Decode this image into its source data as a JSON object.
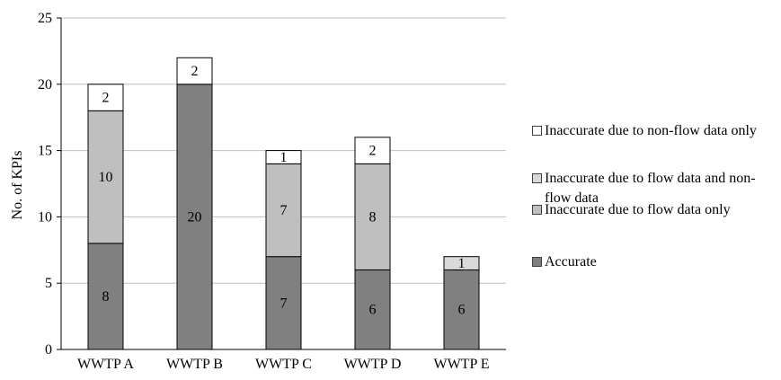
{
  "chart_data": {
    "type": "bar",
    "stacked": true,
    "title": "",
    "xlabel": "",
    "ylabel": "No. of KPIs",
    "ylim": [
      0,
      25
    ],
    "yticks": [
      0,
      5,
      10,
      15,
      20,
      25
    ],
    "grid": "horizontal",
    "legend_position": "right",
    "categories": [
      "WWTP A",
      "WWTP B",
      "WWTP C",
      "WWTP D",
      "WWTP E"
    ],
    "series": [
      {
        "name": "Accurate",
        "values": [
          8,
          20,
          7,
          6,
          6
        ],
        "color": "#808080"
      },
      {
        "name": "Inaccurate due to flow data only",
        "values": [
          10,
          0,
          7,
          8,
          1
        ],
        "color": "#bfbfbf"
      },
      {
        "name": "Inaccurate due to flow data and non-flow data",
        "values": [
          0,
          0,
          0,
          0,
          0
        ],
        "color": "#bfbfbf"
      },
      {
        "name": "Inaccurate due to non-flow data only",
        "values": [
          2,
          2,
          1,
          2,
          0
        ],
        "color": "#ffffff"
      }
    ],
    "top_segment_color": "#d9d9d9",
    "legend_order": [
      "Inaccurate due to non-flow data only",
      "Inaccurate due to flow data and non-flow data",
      "Inaccurate due to flow data only",
      "Accurate"
    ],
    "legend_colors": [
      "#ffffff",
      "#d9d9d9",
      "#bfbfbf",
      "#808080"
    ]
  }
}
